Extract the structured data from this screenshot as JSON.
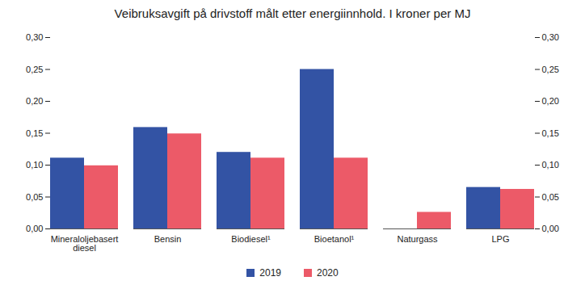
{
  "chart_data": {
    "type": "bar",
    "title": "Veibruksavgift på drivstoff målt etter energiinnhold. I kroner per MJ",
    "categories": [
      "Mineraloljebasert diesel",
      "Bensin",
      "Biodiesel¹",
      "Bioetanol¹",
      "Naturgass",
      "LPG"
    ],
    "series": [
      {
        "name": "2019",
        "color": "#3353a4",
        "values": [
          0.111,
          0.159,
          0.12,
          0.25,
          null,
          0.065
        ]
      },
      {
        "name": "2020",
        "color": "#ec5a68",
        "values": [
          0.099,
          0.149,
          0.111,
          0.111,
          0.026,
          0.062
        ]
      }
    ],
    "ylim": [
      0,
      0.3
    ],
    "yticks": [
      {
        "value": 0,
        "label": "0,00"
      },
      {
        "value": 0.05,
        "label": "0,05"
      },
      {
        "value": 0.1,
        "label": "0,10"
      },
      {
        "value": 0.15,
        "label": "0,15"
      },
      {
        "value": 0.2,
        "label": "0,20"
      },
      {
        "value": 0.25,
        "label": "0,25"
      },
      {
        "value": 0.3,
        "label": "0,30"
      }
    ],
    "y2lim": [
      0,
      0.3
    ],
    "y2ticks": [
      {
        "value": 0,
        "label": "0,00"
      },
      {
        "value": 0.05,
        "label": "0,05"
      },
      {
        "value": 0.1,
        "label": "0,10"
      },
      {
        "value": 0.15,
        "label": "0,15"
      },
      {
        "value": 0.2,
        "label": "0,20"
      },
      {
        "value": 0.25,
        "label": "0,25"
      },
      {
        "value": 0.3,
        "label": "0,30"
      }
    ],
    "grid": false,
    "legend": "bottom"
  }
}
